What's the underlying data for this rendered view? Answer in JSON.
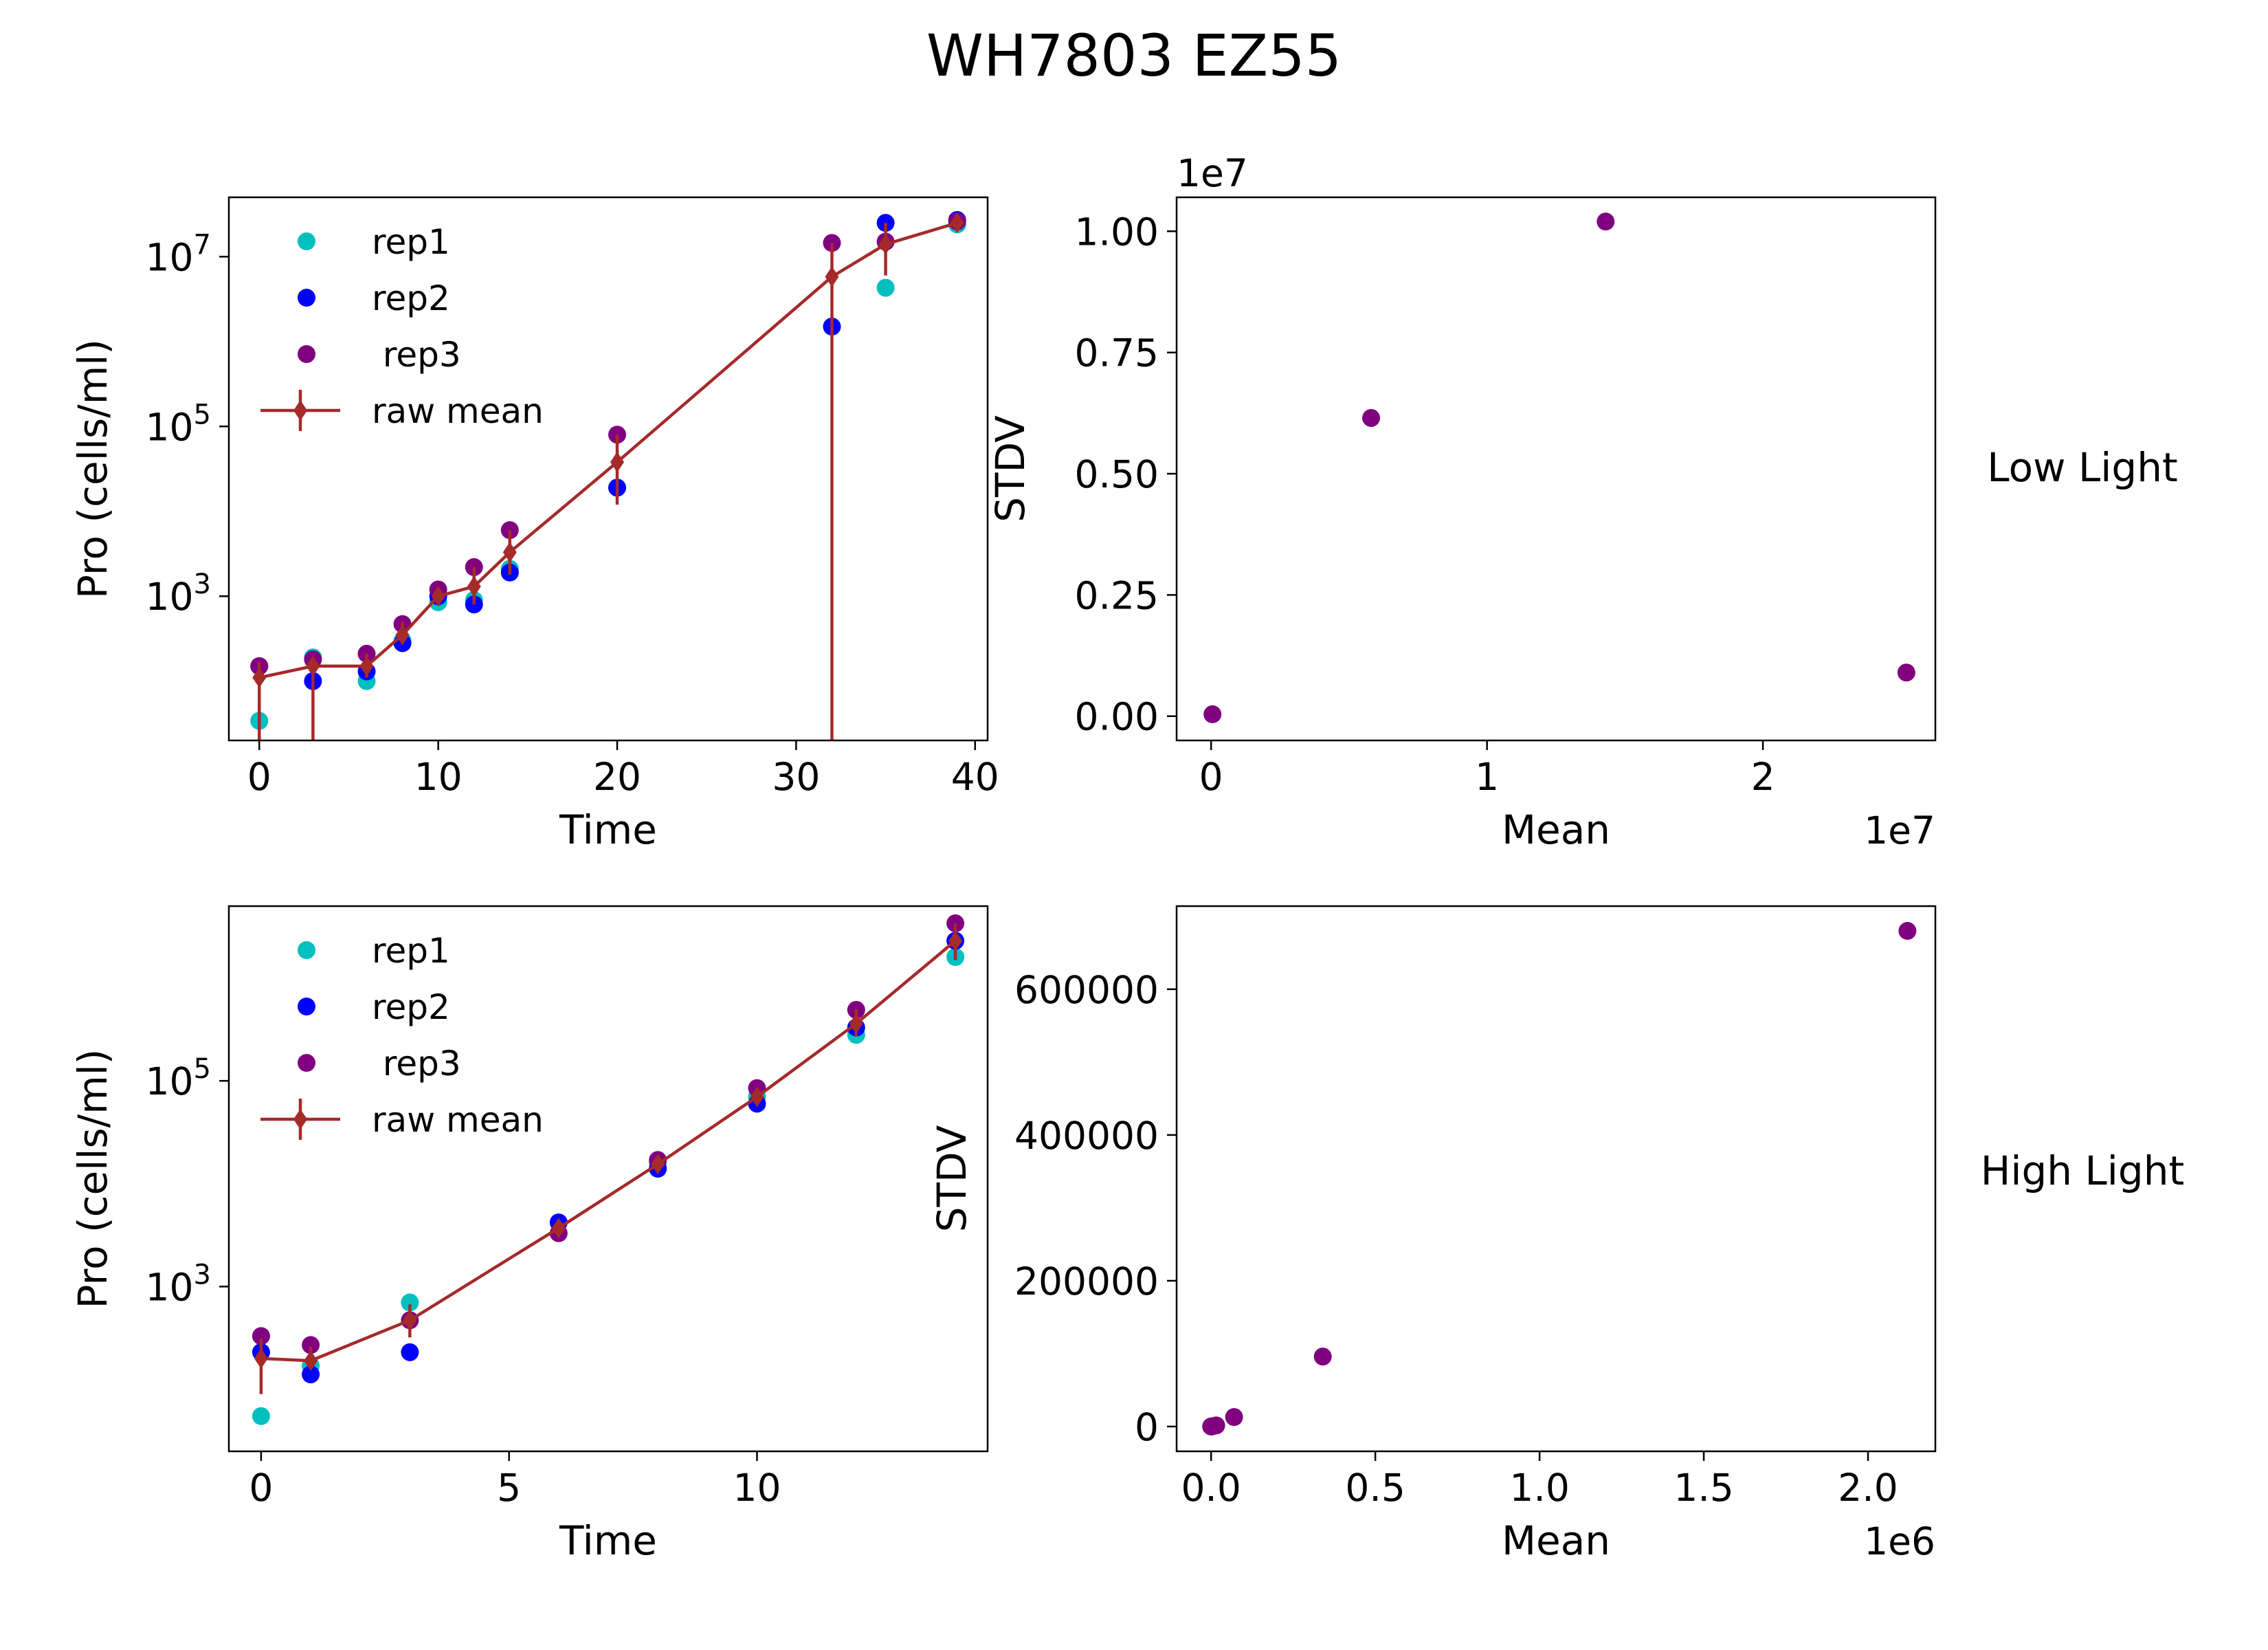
{
  "figure": {
    "title": "WH7803 EZ55",
    "row_labels": [
      "Low Light",
      "High Light"
    ]
  },
  "colors": {
    "rep1": "#00bfbf",
    "rep2": "#0000ff",
    "rep3": "#800080",
    "raw_mean": "#a52a2a",
    "stdv_points": "#800080"
  },
  "chart_data": [
    {
      "id": "low-growth",
      "type": "scatter",
      "xlabel": "Time",
      "ylabel": "Pro (cells/ml)",
      "yscale": "log",
      "xlim": [
        -1.7,
        40.7
      ],
      "ylim": [
        20,
        50000000
      ],
      "xticks": [
        0,
        10,
        20,
        30,
        40
      ],
      "yticks": [
        1000,
        100000,
        10000000
      ],
      "ytick_exponents": [
        "3",
        "5",
        "7"
      ],
      "legend_position": "upper-left",
      "series": [
        {
          "name": "rep1",
          "x": [
            0,
            3,
            6,
            8,
            10,
            12,
            14,
            20,
            32,
            35,
            39
          ],
          "y": [
            34,
            190,
            100,
            300,
            850,
            900,
            2100,
            19000,
            1500000,
            4300000,
            24000000
          ]
        },
        {
          "name": "rep2",
          "x": [
            0,
            3,
            6,
            8,
            10,
            12,
            14,
            20,
            32,
            35,
            39
          ],
          "y": [
            150,
            100,
            130,
            280,
            1000,
            800,
            1900,
            19000,
            1500000,
            25000000,
            27000000
          ]
        },
        {
          "name": " rep3",
          "x": [
            0,
            3,
            6,
            8,
            10,
            12,
            14,
            20,
            32,
            35,
            39
          ],
          "y": [
            150,
            180,
            210,
            470,
            1200,
            2200,
            6000,
            80000,
            14500000,
            15000000,
            26000000
          ]
        }
      ],
      "mean": {
        "name": "raw mean",
        "x": [
          0,
          3,
          6,
          8,
          10,
          12,
          14,
          20,
          32,
          35,
          39
        ],
        "y": [
          110,
          150,
          150,
          350,
          1000,
          1300,
          3300,
          38000,
          5800000,
          14000000,
          25000000
        ],
        "err_low": [
          110,
          150,
          40,
          70,
          200,
          500,
          1500,
          26000,
          5800000,
          8000000,
          3000000
        ],
        "err_high": [
          60,
          40,
          60,
          150,
          200,
          900,
          2700,
          42000,
          8700000,
          11000000,
          2000000
        ]
      }
    },
    {
      "id": "low-stdv",
      "type": "scatter",
      "xlabel": "Mean",
      "ylabel": "STDV",
      "xlim": [
        -1250000,
        26250000
      ],
      "ylim": [
        -500000,
        10700000
      ],
      "xticks": [
        0,
        10000000,
        20000000
      ],
      "xtick_labels": [
        "0",
        "1",
        "2"
      ],
      "yticks": [
        0,
        2500000,
        5000000,
        7500000,
        10000000
      ],
      "ytick_labels": [
        "0.00",
        "0.25",
        "0.50",
        "0.75",
        "1.00"
      ],
      "x_offset_label": "1e7",
      "y_offset_label": "1e7",
      "x": [
        50000,
        5800000,
        14300000,
        25200000
      ],
      "y": [
        40000,
        6150000,
        10200000,
        900000
      ]
    },
    {
      "id": "high-growth",
      "type": "scatter",
      "xlabel": "Time",
      "ylabel": "Pro (cells/ml)",
      "yscale": "log",
      "xlim": [
        -0.65,
        14.65
      ],
      "ylim": [
        25,
        5000000
      ],
      "xticks": [
        0,
        5,
        10
      ],
      "yticks": [
        1000,
        100000
      ],
      "ytick_exponents": [
        "3",
        "5"
      ],
      "legend_position": "upper-left",
      "series": [
        {
          "name": "rep1",
          "x": [
            0,
            1,
            3,
            6,
            8,
            10,
            12,
            14
          ],
          "y": [
            55,
            170,
            700,
            4200,
            16000,
            70000,
            280000,
            1600000
          ]
        },
        {
          "name": "rep2",
          "x": [
            0,
            1,
            3,
            6,
            8,
            10,
            12,
            14
          ],
          "y": [
            230,
            140,
            230,
            4200,
            14000,
            60000,
            330000,
            2300000
          ]
        },
        {
          "name": " rep3",
          "x": [
            0,
            1,
            3,
            6,
            8,
            10,
            12,
            14
          ],
          "y": [
            330,
            270,
            470,
            3300,
            17000,
            85000,
            490000,
            3400000
          ]
        }
      ],
      "mean": {
        "name": "raw mean",
        "x": [
          0,
          1,
          3,
          6,
          8,
          10,
          12,
          14
        ],
        "y": [
          200,
          190,
          470,
          3700,
          15500,
          70000,
          360000,
          2300000
        ],
        "err_low": [
          110,
          30,
          150,
          600,
          2000,
          11000,
          90000,
          800000
        ],
        "err_high": [
          110,
          70,
          200,
          600,
          1800,
          14000,
          140000,
          1100000
        ]
      }
    },
    {
      "id": "high-stdv",
      "type": "scatter",
      "xlabel": "Mean",
      "ylabel": "STDV",
      "xlim": [
        -105000,
        2205000
      ],
      "ylim": [
        -34000,
        714000
      ],
      "xticks": [
        0,
        500000,
        1000000,
        1500000,
        2000000
      ],
      "xtick_labels": [
        "0.0",
        "0.5",
        "1.0",
        "1.5",
        "2.0"
      ],
      "yticks": [
        0,
        200000,
        400000,
        600000
      ],
      "ytick_labels": [
        "0",
        "200000",
        "400000",
        "600000"
      ],
      "x_offset_label": "1e6",
      "x": [
        200,
        400,
        3700,
        15500,
        70000,
        340000,
        2120000
      ],
      "y": [
        100,
        100,
        300,
        1500,
        13000,
        96000,
        680000
      ]
    }
  ]
}
